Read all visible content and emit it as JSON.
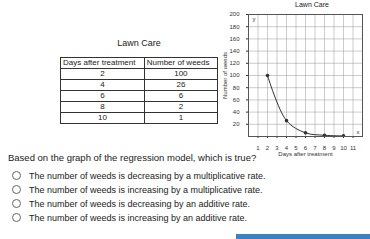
{
  "title": "Lawn Care",
  "table": {
    "header": [
      "Days after treatment",
      "Number of weeds"
    ],
    "rows": [
      [
        2,
        100
      ],
      [
        4,
        26
      ],
      [
        6,
        6
      ],
      [
        8,
        2
      ],
      [
        10,
        1
      ]
    ]
  },
  "chart_data": {
    "type": "line",
    "title": "Lawn Care",
    "x": [
      2,
      4,
      6,
      8,
      10
    ],
    "values": [
      100,
      26,
      6,
      2,
      1
    ],
    "xlabel": "Days after treatment",
    "ylabel": "Number of weeds",
    "axis_names": {
      "x": "x",
      "y": "y"
    },
    "xlim": [
      0,
      12
    ],
    "ylim": [
      0,
      200
    ],
    "xticks": [
      1,
      2,
      3,
      4,
      5,
      6,
      7,
      8,
      9,
      10,
      11
    ],
    "yticks": [
      20,
      40,
      60,
      80,
      100,
      120,
      140,
      160,
      180,
      200
    ],
    "grid": true,
    "marker": "circle",
    "color": "#333333"
  },
  "question": "Based on the graph of the regression model, which is true?",
  "options": [
    "The number of weeds is decreasing by a multiplicative rate.",
    "The number of weeds is increasing by a multiplicative rate.",
    "The number of weeds is decreasing by an additive rate.",
    "The number of weeds is increasing by an additive rate."
  ]
}
